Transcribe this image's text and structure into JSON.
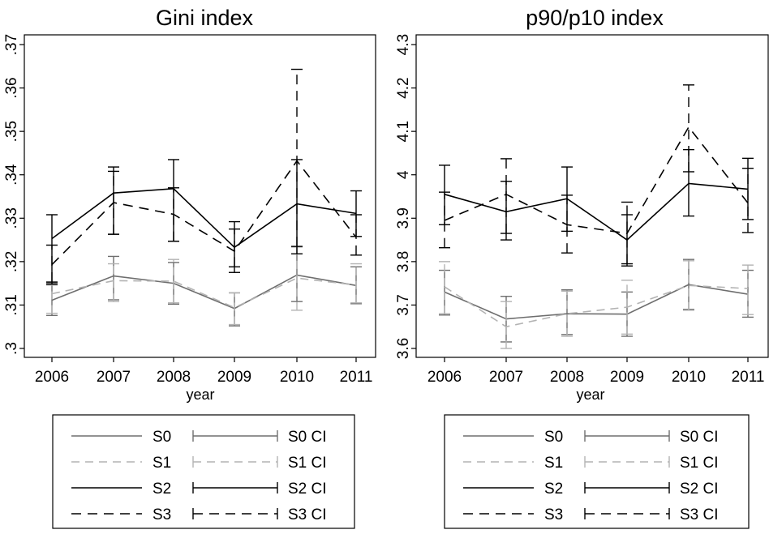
{
  "chart_data": [
    {
      "type": "line",
      "title": "Gini index",
      "xlabel": "year",
      "ylabel": "",
      "x": [
        2006,
        2007,
        2008,
        2009,
        2010,
        2011
      ],
      "x_ticks": [
        "2006",
        "2007",
        "2008",
        "2009",
        "2010",
        "2011"
      ],
      "y_ticks": [
        ".3",
        ".31",
        ".32",
        ".33",
        ".34",
        ".35",
        ".36",
        ".37"
      ],
      "ylim": [
        0.3,
        0.37
      ],
      "series": [
        {
          "name": "S0",
          "values": [
            0.3111,
            0.3167,
            0.315,
            0.3092,
            0.3169,
            0.3145
          ],
          "ci_low": [
            0.3076,
            0.3112,
            0.3102,
            0.3052,
            0.3108,
            0.3103
          ],
          "ci_high": [
            0.3151,
            0.3212,
            0.3198,
            0.3128,
            0.3234,
            0.3188
          ]
        },
        {
          "name": "S1",
          "values": [
            0.3126,
            0.3156,
            0.3155,
            0.3094,
            0.3162,
            0.3146
          ],
          "ci_low": [
            0.3081,
            0.3108,
            0.3105,
            0.3055,
            0.3088,
            0.3105
          ],
          "ci_high": [
            0.3146,
            0.3195,
            0.3205,
            0.3128,
            0.3235,
            0.3195
          ]
        },
        {
          "name": "S2",
          "values": [
            0.3253,
            0.3358,
            0.3368,
            0.3233,
            0.3333,
            0.3311
          ],
          "ci_low": [
            0.3148,
            0.3263,
            0.3247,
            0.3175,
            0.3218,
            0.3258
          ],
          "ci_high": [
            0.3308,
            0.3418,
            0.3435,
            0.3292,
            0.3435,
            0.3363
          ]
        },
        {
          "name": "S3",
          "values": [
            0.3193,
            0.3336,
            0.3309,
            0.3224,
            0.3432,
            0.3256
          ],
          "ci_low": [
            0.3153,
            0.3263,
            0.3247,
            0.3188,
            0.3235,
            0.3215
          ],
          "ci_high": [
            0.3238,
            0.3408,
            0.337,
            0.3275,
            0.3643,
            0.3308
          ]
        }
      ],
      "legend": {
        "position": "bottom",
        "columns": 2,
        "entries": [
          "S0",
          "S0 CI",
          "S1",
          "S1 CI",
          "S2",
          "S2 CI",
          "S3",
          "S3 CI"
        ]
      }
    },
    {
      "type": "line",
      "title": "p90/p10 index",
      "xlabel": "year",
      "ylabel": "",
      "x": [
        2006,
        2007,
        2008,
        2009,
        2010,
        2011
      ],
      "x_ticks": [
        "2006",
        "2007",
        "2008",
        "2009",
        "2010",
        "2011"
      ],
      "y_ticks": [
        "3.6",
        "3.7",
        "3.8",
        "3.9",
        "4",
        "4.1",
        "4.2",
        "4.3"
      ],
      "ylim": [
        3.6,
        4.3
      ],
      "series": [
        {
          "name": "S0",
          "values": [
            3.73,
            3.668,
            3.68,
            3.679,
            3.747,
            3.725
          ],
          "ci_low": [
            3.677,
            3.615,
            3.632,
            3.628,
            3.69,
            3.672
          ],
          "ci_high": [
            3.78,
            3.72,
            3.735,
            3.73,
            3.805,
            3.78
          ]
        },
        {
          "name": "S1",
          "values": [
            3.742,
            3.65,
            3.68,
            3.695,
            3.745,
            3.738
          ],
          "ci_low": [
            3.68,
            3.6,
            3.628,
            3.633,
            3.688,
            3.678
          ],
          "ci_high": [
            3.8,
            3.708,
            3.732,
            3.757,
            3.802,
            3.792
          ]
        },
        {
          "name": "S2",
          "values": [
            3.955,
            3.915,
            3.945,
            3.85,
            3.98,
            3.967
          ],
          "ci_low": [
            3.885,
            3.85,
            3.87,
            3.79,
            3.905,
            3.897
          ],
          "ci_high": [
            4.022,
            3.985,
            4.018,
            3.908,
            4.058,
            4.038
          ]
        },
        {
          "name": "S3",
          "values": [
            3.895,
            3.955,
            3.885,
            3.865,
            4.11,
            3.935
          ],
          "ci_low": [
            3.832,
            3.865,
            3.82,
            3.795,
            4.007,
            3.867
          ],
          "ci_high": [
            3.96,
            4.037,
            3.953,
            3.937,
            4.207,
            4.015
          ]
        }
      ],
      "legend": {
        "position": "bottom",
        "columns": 2,
        "entries": [
          "S0",
          "S0 CI",
          "S1",
          "S1 CI",
          "S2",
          "S2 CI",
          "S3",
          "S3 CI"
        ]
      }
    }
  ],
  "colors": {
    "S0": "#6e6e6e",
    "S1": "#b3b3b3",
    "S2": "#000000",
    "S3": "#000000"
  },
  "dash": {
    "S0": "",
    "S1": "10,7",
    "S2": "",
    "S3": "12,8"
  }
}
